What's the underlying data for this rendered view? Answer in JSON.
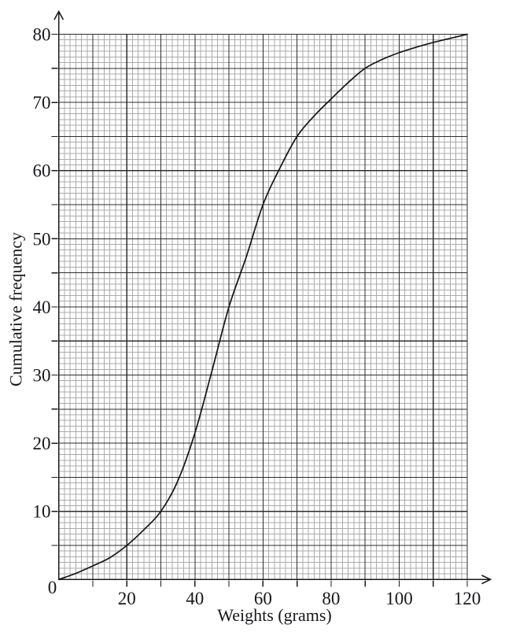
{
  "figure": {
    "background": "#ffffff"
  },
  "chart_data": {
    "type": "line",
    "title": "",
    "xlabel": "Weights (grams)",
    "ylabel": "Cumulative frequency",
    "xlim": [
      0,
      120
    ],
    "ylim": [
      0,
      80
    ],
    "x_label_step": 20,
    "x_tick_step": 10,
    "y_label_step": 10,
    "y_tick_step": 5,
    "origin_label": "0",
    "x_tick_labels": [
      "20",
      "40",
      "60",
      "80",
      "100",
      "120"
    ],
    "y_tick_labels": [
      "10",
      "20",
      "30",
      "40",
      "50",
      "60",
      "70",
      "80"
    ],
    "grid": {
      "on": true,
      "minor_squares_per_block": 6,
      "x_units_per_block": 10,
      "y_units_per_block": 5
    },
    "axis_arrows": true,
    "legend": "none",
    "series": [
      {
        "name": "cumulative-frequency-curve",
        "color": "#151515",
        "points": [
          [
            0,
            0
          ],
          [
            5,
            0.9
          ],
          [
            10,
            2
          ],
          [
            15,
            3.2
          ],
          [
            20,
            5
          ],
          [
            25,
            7.3
          ],
          [
            30,
            10
          ],
          [
            35,
            14.5
          ],
          [
            40,
            21.5
          ],
          [
            45,
            30.6
          ],
          [
            50,
            40
          ],
          [
            55,
            47.2
          ],
          [
            60,
            55
          ],
          [
            65,
            60.4
          ],
          [
            70,
            65
          ],
          [
            75,
            68
          ],
          [
            80,
            70.5
          ],
          [
            85,
            72.9
          ],
          [
            90,
            75
          ],
          [
            95,
            76.3
          ],
          [
            100,
            77.3
          ],
          [
            105,
            78.1
          ],
          [
            110,
            78.8
          ],
          [
            115,
            79.4
          ],
          [
            120,
            80
          ]
        ]
      }
    ],
    "colors": {
      "axis": "#1a1a1a",
      "grid_minor": "#ababab",
      "grid_major": "#2e2e2e",
      "label": "#18181c"
    }
  }
}
